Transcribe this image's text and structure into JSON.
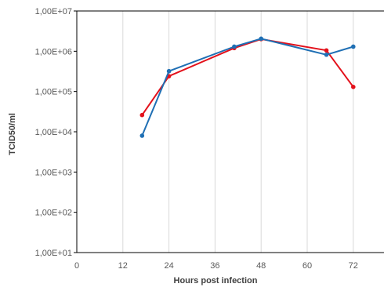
{
  "chart_data": {
    "type": "line",
    "title": "",
    "xlabel": "Hours post infection",
    "ylabel": "TCID50/ml",
    "xlim": [
      0,
      80
    ],
    "xticks": [
      0,
      12,
      24,
      36,
      48,
      60,
      72
    ],
    "ylim": [
      10,
      10000000
    ],
    "yscale": "log",
    "yticks": [
      10,
      100,
      1000,
      10000,
      100000,
      1000000,
      10000000
    ],
    "ytick_labels": [
      "1,00E+01",
      "1,00E+02",
      "1,00E+03",
      "1,00E+04",
      "1,00E+05",
      "1,00E+06",
      "1,00E+07"
    ],
    "grid": "vertical",
    "legend": "none",
    "series": [
      {
        "color": "#e3111b",
        "x": [
          17,
          24,
          41,
          48,
          65,
          72
        ],
        "y": [
          26000,
          240000,
          1200000,
          2000000,
          1050000,
          130000
        ]
      },
      {
        "color": "#1f6fb4",
        "x": [
          17,
          24,
          41,
          48,
          65,
          72
        ],
        "y": [
          8000,
          320000,
          1300000,
          2050000,
          820000,
          1300000
        ]
      }
    ]
  }
}
